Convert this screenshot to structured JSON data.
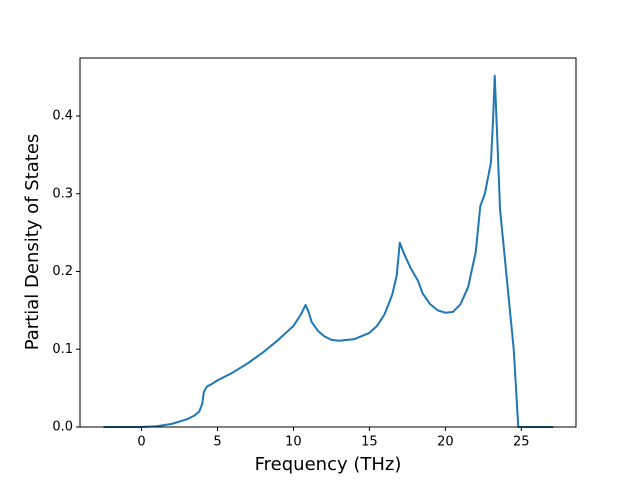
{
  "chart_data": {
    "type": "line",
    "xlabel": "Frequency (THz)",
    "ylabel": "Partial Density of States",
    "x": [
      -2.5,
      0,
      1,
      2,
      3,
      3.5,
      3.8,
      4.0,
      4.1,
      4.3,
      4.6,
      5,
      6,
      7,
      8,
      9,
      10,
      10.5,
      10.8,
      11,
      11.2,
      11.6,
      12,
      12.5,
      13,
      14,
      15,
      15.5,
      16,
      16.5,
      16.8,
      17,
      17.3,
      17.7,
      18.2,
      18.5,
      19,
      19.5,
      20,
      20.5,
      21,
      21.5,
      22,
      22.3,
      22.6,
      23,
      23.15,
      23.25,
      23.4,
      23.6,
      24,
      24.3,
      24.5,
      24.8,
      25,
      27.1
    ],
    "values": [
      0,
      0,
      0.001,
      0.004,
      0.01,
      0.015,
      0.02,
      0.03,
      0.045,
      0.052,
      0.055,
      0.06,
      0.07,
      0.082,
      0.096,
      0.112,
      0.13,
      0.145,
      0.157,
      0.148,
      0.135,
      0.124,
      0.117,
      0.112,
      0.111,
      0.113,
      0.121,
      0.13,
      0.145,
      0.17,
      0.195,
      0.237,
      0.222,
      0.205,
      0.188,
      0.172,
      0.158,
      0.15,
      0.147,
      0.148,
      0.158,
      0.18,
      0.225,
      0.284,
      0.3,
      0.34,
      0.4,
      0.452,
      0.38,
      0.28,
      0.2,
      0.14,
      0.1,
      0,
      0,
      0
    ],
    "color": "#1f77b4",
    "xlim": [
      -4.05,
      28.6
    ],
    "ylim": [
      0,
      0.4746
    ],
    "xticks": [
      0,
      5,
      10,
      15,
      20,
      25
    ],
    "yticks": [
      {
        "value": 0,
        "label": "0.0"
      },
      0.1,
      0.2,
      0.3,
      0.4
    ]
  }
}
